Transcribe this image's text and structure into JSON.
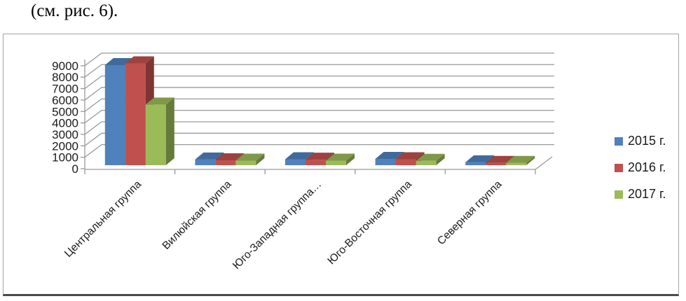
{
  "document": {
    "caption": "(см. рис. 6)."
  },
  "chart_data": {
    "type": "bar",
    "style": "3d-clustered-column",
    "title": "",
    "xlabel": "",
    "ylabel": "",
    "categories": [
      "Центральная группа",
      "Вилюйская группа",
      "Юго-Западная группа…",
      "Юго-Восточная группа",
      "Северная группа"
    ],
    "series": [
      {
        "name": "2015 г.",
        "color": "#4F81BD",
        "values": [
          8750,
          500,
          520,
          550,
          250
        ]
      },
      {
        "name": "2016 г.",
        "color": "#C0504D",
        "values": [
          8900,
          430,
          480,
          520,
          200
        ]
      },
      {
        "name": "2017 г.",
        "color": "#9BBB59",
        "values": [
          5300,
          400,
          400,
          380,
          200
        ]
      }
    ],
    "ylim": [
      0,
      9000
    ],
    "ytick_step": 1000,
    "grid": true,
    "legend_position": "right",
    "axis_color": "#9a9a9a",
    "text_color": "#1a1a1a"
  }
}
